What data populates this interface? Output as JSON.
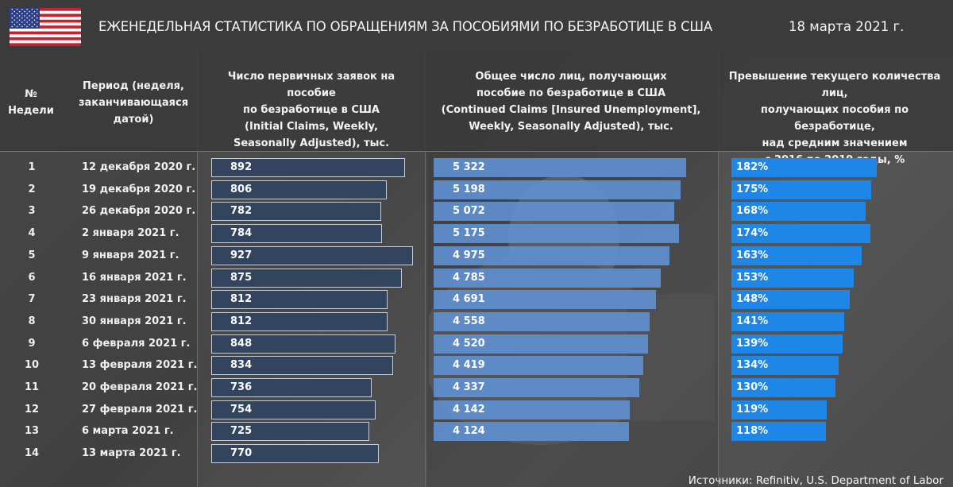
{
  "header": {
    "title": "ЕЖЕНЕДЕЛЬНАЯ СТАТИСТИКА ПО ОБРАЩЕНИЯМ ЗА ПОСОБИЯМИ ПО БЕЗРАБОТИЦЕ В США",
    "date": "18 марта 2021 г.",
    "flag_icon": "us-flag-icon"
  },
  "columns": {
    "week": "№\nНедели",
    "period": "Период  (неделя,\nзаканчивающаяся\nдатой)",
    "initial": "Число первичных заявок на пособие\nпо безработице в США\n(Initial Claims, Weekly,\nSeasonally Adjusted), тыс.",
    "continued": "Общее число лиц, получающих\nпособие по безработице в США\n(Continued Claims [Insured Unemployment],\nWeekly, Seasonally Adjusted), тыс.",
    "excess": "Превышение текущего количества лиц,\nполучающих пособия по безработице,\nнад средним значением\nс 2016 по 2019 годы, %"
  },
  "colors": {
    "initial_bar": "#33445e",
    "continued_bar": "#6092d6",
    "excess_bar": "#1e86e6"
  },
  "chart_data": {
    "type": "table",
    "rows": [
      {
        "week": "1",
        "period": "12 декабря 2020 г.",
        "initial": 892,
        "initial_label": "892",
        "continued": 5322,
        "continued_label": "5 322",
        "excess": 182,
        "excess_label": "182%"
      },
      {
        "week": "2",
        "period": "19 декабря 2020 г.",
        "initial": 806,
        "initial_label": "806",
        "continued": 5198,
        "continued_label": "5 198",
        "excess": 175,
        "excess_label": "175%"
      },
      {
        "week": "3",
        "period": "26 декабря 2020 г.",
        "initial": 782,
        "initial_label": "782",
        "continued": 5072,
        "continued_label": "5 072",
        "excess": 168,
        "excess_label": "168%"
      },
      {
        "week": "4",
        "period": "2 января 2021 г.",
        "initial": 784,
        "initial_label": "784",
        "continued": 5175,
        "continued_label": "5 175",
        "excess": 174,
        "excess_label": "174%"
      },
      {
        "week": "5",
        "period": "9 января 2021 г.",
        "initial": 927,
        "initial_label": "927",
        "continued": 4975,
        "continued_label": "4 975",
        "excess": 163,
        "excess_label": "163%"
      },
      {
        "week": "6",
        "period": "16 января 2021 г.",
        "initial": 875,
        "initial_label": "875",
        "continued": 4785,
        "continued_label": "4 785",
        "excess": 153,
        "excess_label": "153%"
      },
      {
        "week": "7",
        "period": "23 января 2021 г.",
        "initial": 812,
        "initial_label": "812",
        "continued": 4691,
        "continued_label": "4 691",
        "excess": 148,
        "excess_label": "148%"
      },
      {
        "week": "8",
        "period": "30 января 2021 г.",
        "initial": 812,
        "initial_label": "812",
        "continued": 4558,
        "continued_label": "4 558",
        "excess": 141,
        "excess_label": "141%"
      },
      {
        "week": "9",
        "period": "6 февраля 2021 г.",
        "initial": 848,
        "initial_label": "848",
        "continued": 4520,
        "continued_label": "4 520",
        "excess": 139,
        "excess_label": "139%"
      },
      {
        "week": "10",
        "period": "13 февраля 2021 г.",
        "initial": 834,
        "initial_label": "834",
        "continued": 4419,
        "continued_label": "4 419",
        "excess": 134,
        "excess_label": "134%"
      },
      {
        "week": "11",
        "period": "20 февраля 2021 г.",
        "initial": 736,
        "initial_label": "736",
        "continued": 4337,
        "continued_label": "4 337",
        "excess": 130,
        "excess_label": "130%"
      },
      {
        "week": "12",
        "period": "27 февраля 2021 г.",
        "initial": 754,
        "initial_label": "754",
        "continued": 4142,
        "continued_label": "4 142",
        "excess": 119,
        "excess_label": "119%"
      },
      {
        "week": "13",
        "period": "6 марта 2021 г.",
        "initial": 725,
        "initial_label": "725",
        "continued": 4124,
        "continued_label": "4 124",
        "excess": 118,
        "excess_label": "118%"
      },
      {
        "week": "14",
        "period": "13 марта 2021 г.",
        "initial": 770,
        "initial_label": "770",
        "continued": null,
        "continued_label": "",
        "excess": null,
        "excess_label": ""
      }
    ]
  },
  "footer": {
    "source": "Источники: Refinitiv, U.S. Department of Labor"
  }
}
